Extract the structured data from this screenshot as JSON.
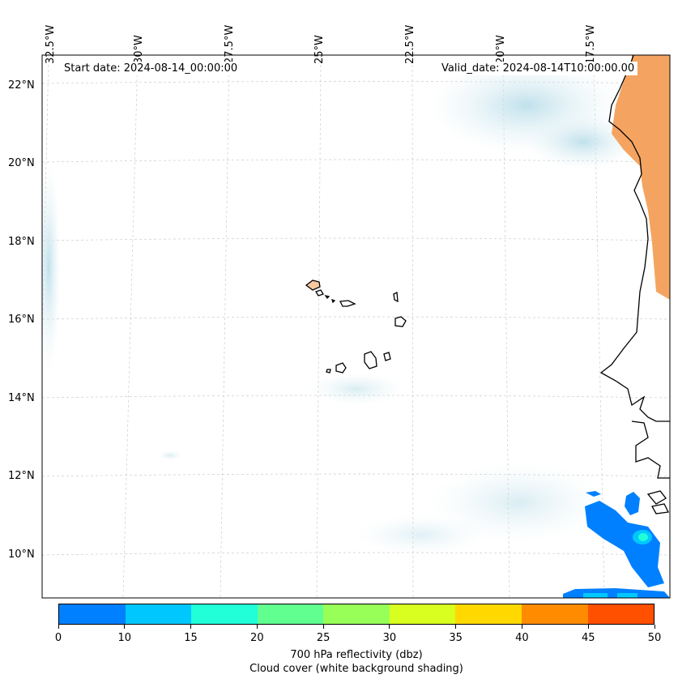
{
  "map": {
    "lat_labels": [
      "22°N",
      "20°N",
      "18°N",
      "16°N",
      "14°N",
      "12°N",
      "10°N"
    ],
    "lon_labels": [
      "32.5°W",
      "30°W",
      "27.5°W",
      "25°W",
      "22.5°W",
      "20°W",
      "17.5°W"
    ],
    "start_date": "Start date: 2024-08-14_00:00:00",
    "valid_date": "Valid_date: 2024-08-14T10:00:00.00"
  },
  "colorbar": {
    "colors": [
      "#0080ff",
      "#00c8ff",
      "#20ffd8",
      "#60ff90",
      "#98ff58",
      "#d8ff20",
      "#ffd800",
      "#ff8c00",
      "#ff5000"
    ],
    "ticks": [
      "0",
      "10",
      "15",
      "20",
      "25",
      "30",
      "35",
      "40",
      "45",
      "50"
    ],
    "title_line1": "700 hPa reflectivity (dbz)",
    "title_line2": "Cloud cover (white background shading)"
  },
  "colors": {
    "land_warm": "#f4a460",
    "cloud_shade": "#cfe8f0",
    "coast": "#000000"
  }
}
